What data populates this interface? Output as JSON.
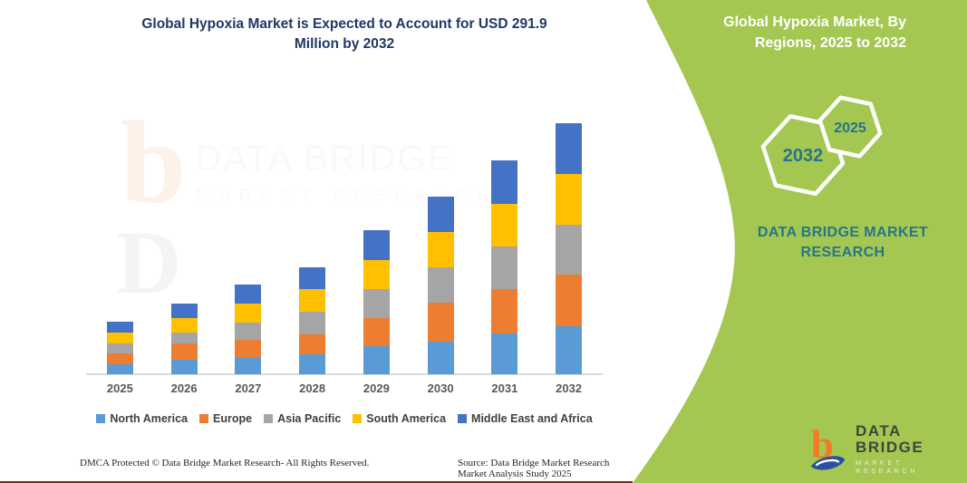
{
  "title": "Global Hypoxia Market is Expected to Account for USD 291.9 Million by 2032",
  "side_panel": {
    "heading": "Global Hypoxia Market, By Regions, 2025 to 2032",
    "hexagons": [
      {
        "label": "2032"
      },
      {
        "label": "2025"
      }
    ],
    "brand_text": "DATA BRIDGE MARKET RESEARCH",
    "background_color": "#A4C752",
    "heading_color": "#FFFFFF",
    "accent_teal": "#26758B"
  },
  "logo": {
    "icon": "data-bridge-b-swoosh",
    "name": "DATA BRIDGE",
    "subtitle": "MARKET RESEARCH"
  },
  "watermark": {
    "icon": "data-bridge-b-swoosh",
    "line1": "DATA BRIDGE",
    "line2": "MARKET RESEARCH"
  },
  "footer": {
    "left": "DMCA Protected © Data Bridge Market Research-  All Rights Reserved.",
    "right": "Source: Data Bridge Market Research  Market Analysis Study 2025"
  },
  "chart_data": {
    "type": "bar",
    "stacked": true,
    "title": "Global Hypoxia Market is Expected to Account for USD 291.9 Million by 2032",
    "unit": "USD Million",
    "categories": [
      "2025",
      "2026",
      "2027",
      "2028",
      "2029",
      "2030",
      "2031",
      "2032"
    ],
    "series": [
      {
        "name": "North America",
        "color": "#5B9BD5",
        "values": [
          11.6,
          16.9,
          19.3,
          22.9,
          32.3,
          37.9,
          47.7,
          56.2
        ]
      },
      {
        "name": "Europe",
        "color": "#ED7D31",
        "values": [
          12.3,
          19.0,
          21.1,
          23.5,
          32.7,
          45.6,
          51.6,
          59.7
        ]
      },
      {
        "name": "Asia Pacific",
        "color": "#A5A5A5",
        "values": [
          12.3,
          12.6,
          20.0,
          26.7,
          34.0,
          41.4,
          49.2,
          58.3
        ]
      },
      {
        "name": "South America",
        "color": "#FFC000",
        "values": [
          12.3,
          16.5,
          22.1,
          26.0,
          33.4,
          40.4,
          49.2,
          58.7
        ]
      },
      {
        "name": "Middle East and Africa",
        "color": "#4472C4",
        "values": [
          13.0,
          17.6,
          22.1,
          25.6,
          35.1,
          41.1,
          50.9,
          59.0
        ]
      }
    ],
    "totals": [
      61.5,
      82.6,
      104.5,
      124.7,
      167.5,
      206.4,
      248.6,
      291.9
    ],
    "xlabel": "",
    "ylabel": "",
    "ylim": [
      0,
      292
    ],
    "grid": false,
    "y_axis_shown": false,
    "legend_position": "bottom"
  }
}
